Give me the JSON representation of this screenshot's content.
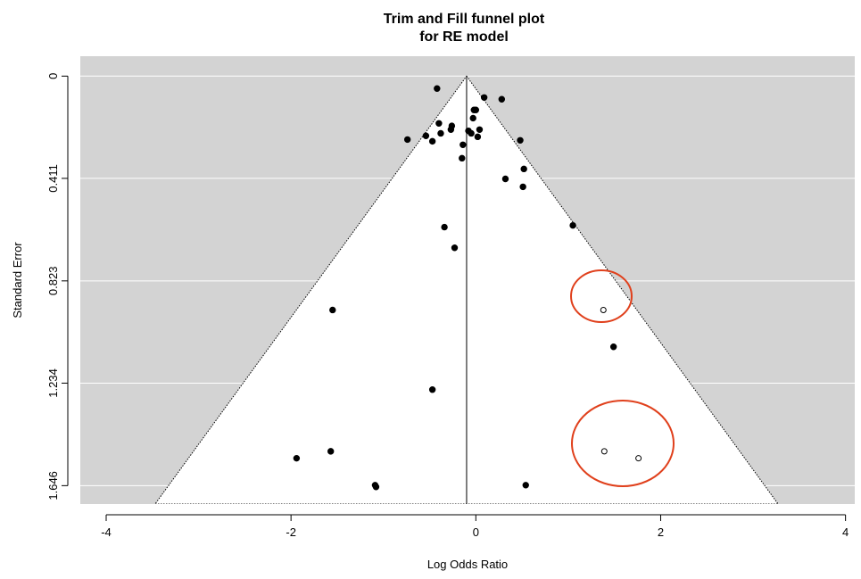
{
  "chart_data": {
    "type": "funnel",
    "title_lines": [
      "Trim and Fill funnel plot",
      "for RE model"
    ],
    "x_label": "Log Odds Ratio",
    "y_label": "Standard Error",
    "xlim": [
      -4.28,
      4.1
    ],
    "ylim": [
      -0.08,
      1.72
    ],
    "y_reversed": true,
    "xticks": [
      -4,
      -2,
      0,
      2,
      4
    ],
    "yticks": [
      0,
      0.411,
      0.823,
      1.234,
      1.646
    ],
    "grid": true,
    "background": "#d3d3d3",
    "funnel_center": -0.1,
    "funnel_z": 1.96,
    "series": [
      {
        "marker": "filled",
        "color": "#000000",
        "x": [
          -0.42,
          0.09,
          0.28,
          -0.02,
          0.0,
          -0.03,
          -0.4,
          -0.26,
          -0.27,
          -0.38,
          -0.08,
          -0.05,
          0.04,
          0.02,
          -0.74,
          -0.54,
          -0.47,
          -0.14,
          0.48,
          -0.15,
          0.52,
          0.32,
          0.51,
          -0.34,
          1.05,
          -0.23,
          -1.55,
          1.49,
          -0.47,
          -1.57,
          -1.94,
          -1.09,
          -1.08,
          0.54
        ],
        "values": [
          0.05,
          0.086,
          0.093,
          0.136,
          0.136,
          0.169,
          0.19,
          0.2,
          0.215,
          0.23,
          0.22,
          0.23,
          0.215,
          0.244,
          0.255,
          0.24,
          0.262,
          0.276,
          0.258,
          0.33,
          0.373,
          0.413,
          0.445,
          0.607,
          0.6,
          0.69,
          0.94,
          1.088,
          1.26,
          1.508,
          1.536,
          1.644,
          1.651,
          1.644
        ]
      },
      {
        "marker": "open",
        "color": "#000000",
        "x": [
          1.38,
          1.39,
          1.76
        ],
        "values": [
          0.94,
          1.508,
          1.536
        ]
      }
    ]
  }
}
